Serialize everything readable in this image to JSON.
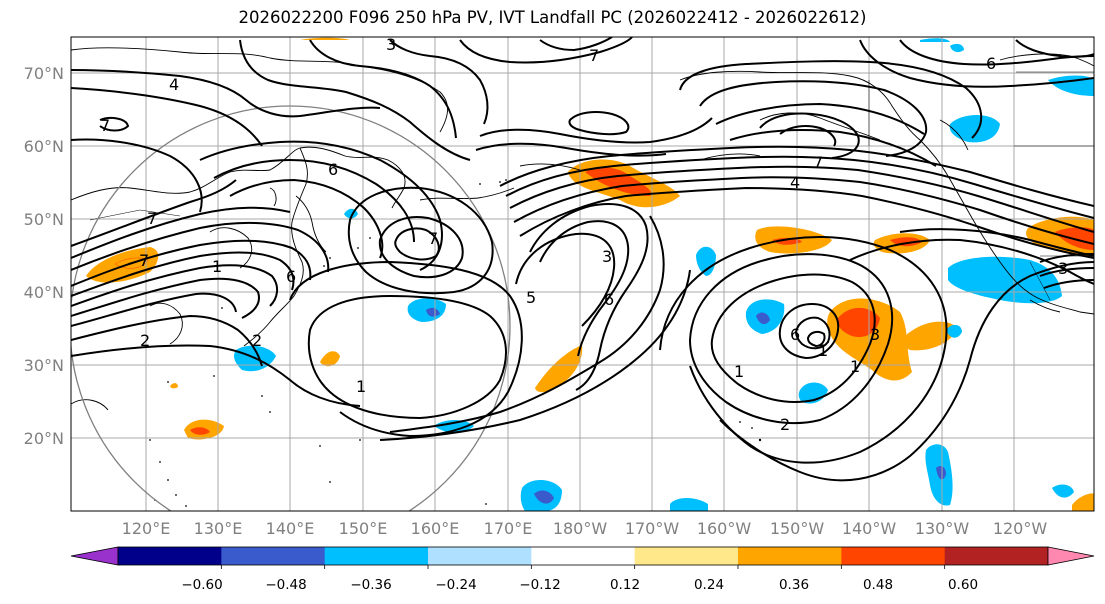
{
  "title": "2026022200 F096 250 hPa PV, IVT Landfall PC (2026022412 - 2026022612)",
  "lat_labels": [
    "70°N",
    "60°N",
    "50°N",
    "40°N",
    "30°N",
    "20°N"
  ],
  "lon_labels": [
    "120°E",
    "130°E",
    "140°E",
    "150°E",
    "160°E",
    "170°E",
    "180°W",
    "170°W",
    "160°W",
    "150°W",
    "140°W",
    "130°W",
    "120°W"
  ],
  "colorbar": {
    "ticks": [
      "−0.60",
      "−0.48",
      "−0.36",
      "−0.24",
      "−0.12",
      "0.12",
      "0.24",
      "0.36",
      "0.48",
      "0.60"
    ],
    "colors": [
      "#9932cc",
      "#00008b",
      "#3a5bcc",
      "#00bfff",
      "#b0e0ff",
      "#ffffff",
      "#ffe88a",
      "#ffa500",
      "#ff4500",
      "#b22222",
      "#ff88b0"
    ]
  },
  "contour_labels": [
    "4",
    "7",
    "3",
    "7",
    "6",
    "7",
    "7",
    "1",
    "6",
    "7",
    "1",
    "2",
    "2",
    "1",
    "3",
    "5",
    "6",
    "7",
    "4",
    "6",
    "3",
    "1",
    "2",
    "3",
    "6",
    "1"
  ]
}
